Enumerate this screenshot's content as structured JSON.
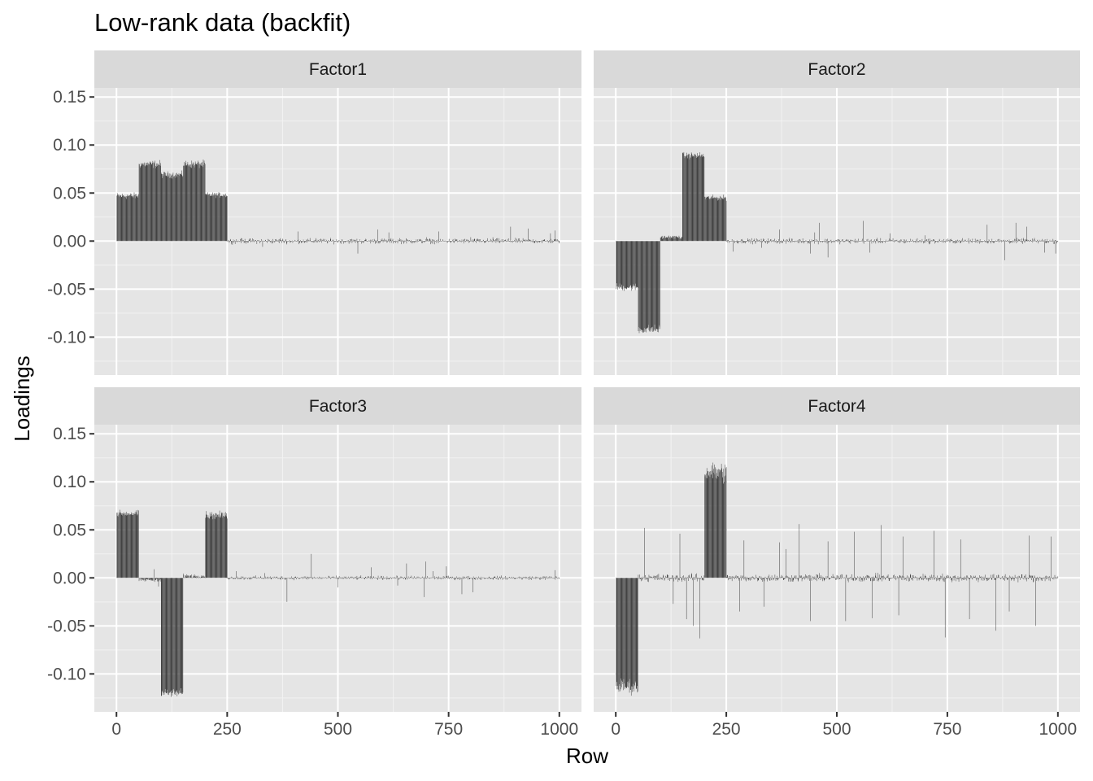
{
  "chart_data": {
    "type": "bar",
    "title": "Low-rank data (backfit)",
    "xlabel": "Row",
    "ylabel": "Loadings",
    "xlim": [
      -50,
      1050
    ],
    "ylim": [
      -0.15,
      0.15
    ],
    "x_ticks": [
      0,
      250,
      500,
      750,
      1000
    ],
    "y_ticks": [
      -0.1,
      -0.05,
      0.0,
      0.05,
      0.1,
      0.15
    ],
    "x_tick_labels": [
      "0",
      "250",
      "500",
      "750",
      "1000"
    ],
    "y_tick_labels": [
      "-0.10",
      "-0.05",
      "0.00",
      "0.05",
      "0.10",
      "0.15"
    ],
    "n_rows": 1000,
    "grid": true,
    "panel_background": "#e5e5e5",
    "strip_background": "#d9d9d9",
    "bar_color": "#3a3a3a",
    "grid_color": "#ffffff",
    "facets": [
      {
        "name": "Factor1",
        "blocks": [
          {
            "start": 1,
            "end": 50,
            "level": 0.047,
            "spread": 0.005
          },
          {
            "start": 51,
            "end": 100,
            "level": 0.08,
            "spread": 0.006
          },
          {
            "start": 101,
            "end": 150,
            "level": 0.069,
            "spread": 0.005
          },
          {
            "start": 151,
            "end": 200,
            "level": 0.08,
            "spread": 0.006
          },
          {
            "start": 201,
            "end": 250,
            "level": 0.048,
            "spread": 0.004
          }
        ],
        "noise": 0.004,
        "spikes": [
          [
            280,
            0.002
          ],
          [
            330,
            -0.006
          ],
          [
            370,
            0.003
          ],
          [
            410,
            0.01
          ],
          [
            450,
            0.003
          ],
          [
            545,
            -0.013
          ],
          [
            590,
            0.012
          ],
          [
            615,
            0.009
          ],
          [
            640,
            0.003
          ],
          [
            700,
            0.004
          ],
          [
            728,
            0.01
          ],
          [
            800,
            0.004
          ],
          [
            850,
            0.004
          ],
          [
            890,
            0.015
          ],
          [
            930,
            0.013
          ],
          [
            980,
            0.008
          ],
          [
            990,
            0.011
          ]
        ]
      },
      {
        "name": "Factor2",
        "blocks": [
          {
            "start": 1,
            "end": 50,
            "level": -0.048,
            "spread": 0.006
          },
          {
            "start": 51,
            "end": 100,
            "level": -0.092,
            "spread": 0.007
          },
          {
            "start": 101,
            "end": 150,
            "level": 0.004,
            "spread": 0.003
          },
          {
            "start": 151,
            "end": 200,
            "level": 0.089,
            "spread": 0.005
          },
          {
            "start": 201,
            "end": 250,
            "level": 0.045,
            "spread": 0.004
          }
        ],
        "noise": 0.004,
        "spikes": [
          [
            265,
            -0.011
          ],
          [
            330,
            -0.007
          ],
          [
            370,
            0.012
          ],
          [
            440,
            -0.013
          ],
          [
            450,
            0.009
          ],
          [
            460,
            0.019
          ],
          [
            480,
            -0.017
          ],
          [
            560,
            0.021
          ],
          [
            575,
            -0.012
          ],
          [
            620,
            0.008
          ],
          [
            700,
            0.006
          ],
          [
            840,
            0.017
          ],
          [
            880,
            -0.02
          ],
          [
            905,
            0.019
          ],
          [
            930,
            0.015
          ],
          [
            970,
            -0.012
          ],
          [
            995,
            -0.013
          ]
        ]
      },
      {
        "name": "Factor3",
        "blocks": [
          {
            "start": 1,
            "end": 50,
            "level": 0.067,
            "spread": 0.005
          },
          {
            "start": 51,
            "end": 100,
            "level": -0.002,
            "spread": 0.003
          },
          {
            "start": 101,
            "end": 150,
            "level": -0.12,
            "spread": 0.007
          },
          {
            "start": 151,
            "end": 200,
            "level": 0.002,
            "spread": 0.003
          },
          {
            "start": 201,
            "end": 250,
            "level": 0.065,
            "spread": 0.006
          }
        ],
        "noise": 0.003,
        "spikes": [
          [
            85,
            0.009
          ],
          [
            95,
            -0.009
          ],
          [
            270,
            0.007
          ],
          [
            335,
            0.005
          ],
          [
            385,
            -0.025
          ],
          [
            440,
            0.025
          ],
          [
            500,
            -0.01
          ],
          [
            575,
            0.011
          ],
          [
            635,
            -0.008
          ],
          [
            655,
            0.015
          ],
          [
            695,
            -0.02
          ],
          [
            698,
            0.017
          ],
          [
            715,
            0.007
          ],
          [
            745,
            0.012
          ],
          [
            780,
            -0.017
          ],
          [
            805,
            -0.015
          ],
          [
            990,
            0.008
          ]
        ]
      },
      {
        "name": "Factor4",
        "blocks": [
          {
            "start": 1,
            "end": 50,
            "level": -0.113,
            "spread": 0.012
          },
          {
            "start": 51,
            "end": 200,
            "level": 0.0,
            "spread": 0.006
          },
          {
            "start": 201,
            "end": 250,
            "level": 0.11,
            "spread": 0.016
          }
        ],
        "noise": 0.006,
        "spikes": [
          [
            65,
            0.052
          ],
          [
            130,
            -0.027
          ],
          [
            145,
            0.046
          ],
          [
            160,
            -0.043
          ],
          [
            175,
            -0.05
          ],
          [
            190,
            -0.063
          ],
          [
            280,
            -0.035
          ],
          [
            290,
            0.039
          ],
          [
            335,
            -0.03
          ],
          [
            370,
            0.037
          ],
          [
            385,
            0.03
          ],
          [
            415,
            0.056
          ],
          [
            440,
            -0.045
          ],
          [
            480,
            0.038
          ],
          [
            520,
            -0.045
          ],
          [
            540,
            0.048
          ],
          [
            580,
            -0.042
          ],
          [
            600,
            0.055
          ],
          [
            640,
            -0.039
          ],
          [
            650,
            0.043
          ],
          [
            720,
            0.049
          ],
          [
            745,
            -0.062
          ],
          [
            780,
            0.04
          ],
          [
            800,
            -0.043
          ],
          [
            860,
            -0.055
          ],
          [
            890,
            -0.035
          ],
          [
            935,
            0.044
          ],
          [
            950,
            -0.05
          ],
          [
            985,
            0.043
          ]
        ]
      }
    ]
  }
}
